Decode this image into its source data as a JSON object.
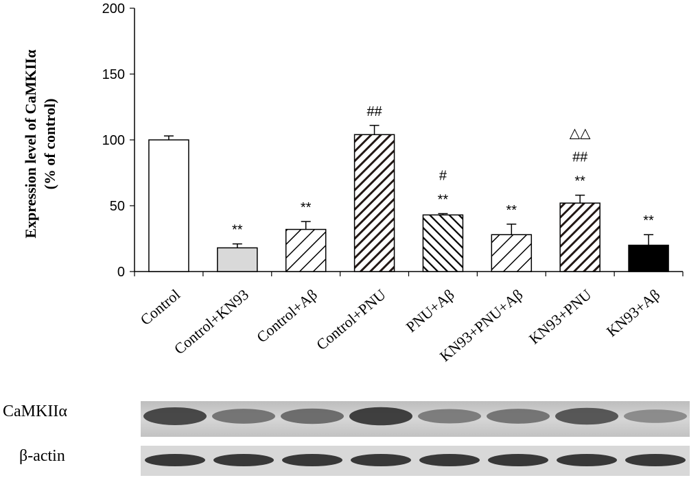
{
  "chart_data": {
    "type": "bar",
    "ylabel_line1": "Expression level of CaMKIIα",
    "ylabel_line2": "(% of control)",
    "ylim": [
      0,
      200
    ],
    "yticks": [
      "0",
      "50",
      "100",
      "150",
      "200"
    ],
    "categories": [
      "Control",
      "Control+KN93",
      "Control+Aβ",
      "Control+PNU",
      "PNU+Aβ",
      "KN93+PNU+Aβ",
      "KN93+PNU",
      "KN93+Aβ"
    ],
    "values": [
      100,
      18,
      32,
      104,
      43,
      28,
      52,
      20
    ],
    "errors": [
      3,
      3,
      6,
      7,
      1,
      8,
      6,
      8
    ],
    "fills": [
      "white",
      "light-gray",
      "hatch-sparse",
      "hatch-dense",
      "hatch-dense-light",
      "hatch-sparse",
      "hatch-dense",
      "black"
    ],
    "annotations": [
      [],
      [
        "**"
      ],
      [
        "**"
      ],
      [
        "##"
      ],
      [
        "**",
        "#"
      ],
      [
        "**"
      ],
      [
        "**",
        "##",
        "△△"
      ],
      [
        "**"
      ]
    ]
  },
  "blot": {
    "label_top": "CaMKIIα",
    "label_bottom": "β-actin",
    "top_intensity": [
      0.85,
      0.55,
      0.6,
      0.9,
      0.5,
      0.55,
      0.75,
      0.4
    ],
    "bottom_intensity": [
      0.85,
      0.85,
      0.85,
      0.85,
      0.85,
      0.85,
      0.85,
      0.85
    ]
  }
}
